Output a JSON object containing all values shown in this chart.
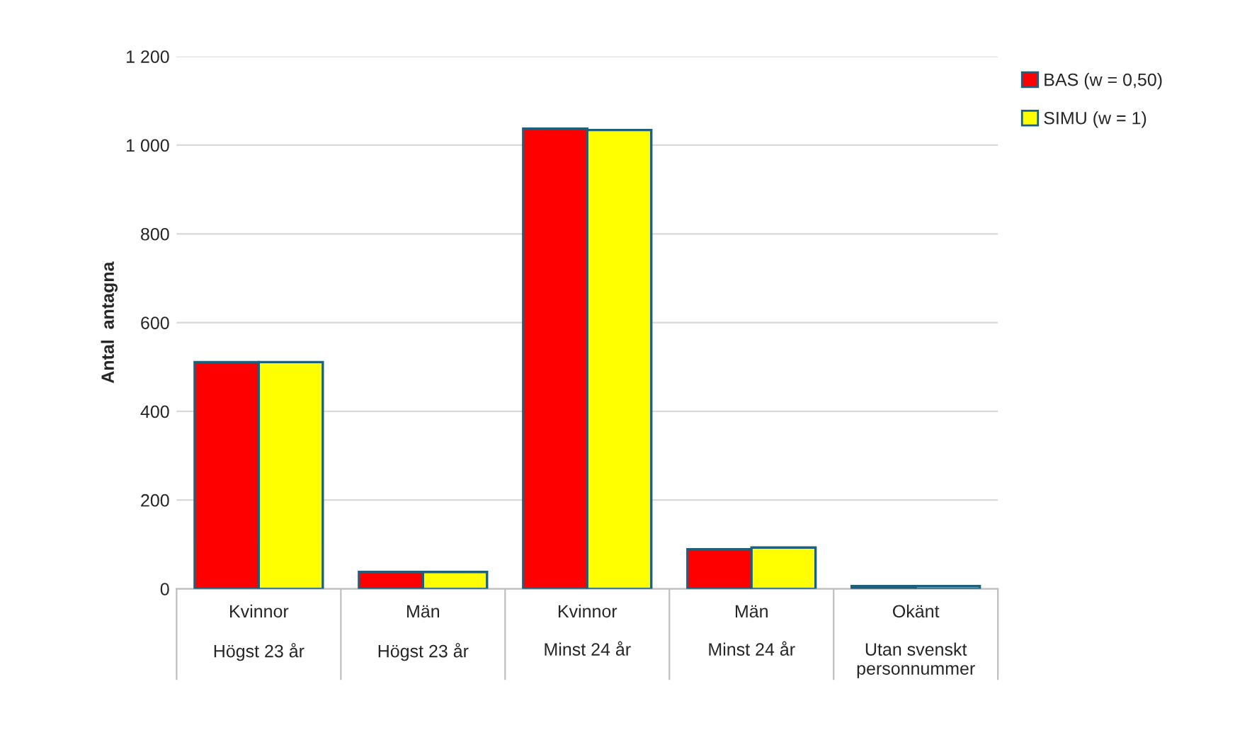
{
  "chart_data": {
    "type": "bar",
    "ylabel": "Antal  antagna",
    "categories": [
      "Kvinnor\n\nHögst 23 år",
      "Män\n\nHögst 23 år",
      "Kvinnor\n\nMinst 24 år",
      "Män\n\nMinst 24 år",
      "Okänt\n\nUtan svenskt\npersonnummer"
    ],
    "series": [
      {
        "name": "BAS (w = 0,50)",
        "color": "#ff0000",
        "values": [
          511,
          38,
          1037,
          89,
          6
        ]
      },
      {
        "name": "SIMU (w = 1)",
        "color": "#ffff00",
        "values": [
          511,
          38,
          1034,
          93,
          6
        ]
      }
    ],
    "ylim": [
      0,
      1200
    ],
    "yticks": [
      0,
      200,
      400,
      600,
      800,
      {
        "value": 1000,
        "label": "1 000"
      },
      {
        "value": 1200,
        "label": "1 200"
      }
    ],
    "grid": "y",
    "legend": "top right"
  }
}
